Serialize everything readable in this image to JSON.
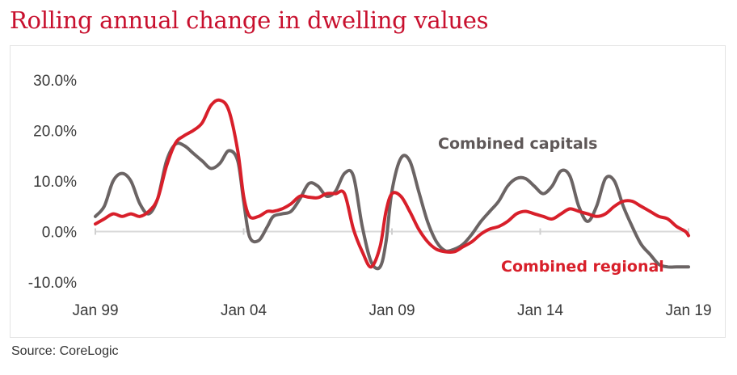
{
  "title": "Rolling annual change in dwelling values",
  "source": "Source: CoreLogic",
  "chart_data": {
    "type": "line",
    "yticks": [
      "30.0%",
      "20.0%",
      "10.0%",
      "0.0%",
      "-10.0%"
    ],
    "ytick_values": [
      30,
      20,
      10,
      0,
      -10
    ],
    "xticks": [
      "Jan 99",
      "Jan 04",
      "Jan 09",
      "Jan 14",
      "Jan 19"
    ],
    "xtick_values": [
      1999,
      2004,
      2009,
      2014,
      2019
    ],
    "xlim": [
      1999,
      2019
    ],
    "ylim": [
      -10,
      30
    ],
    "grid": false,
    "series": [
      {
        "name": "Combined capitals",
        "color": "#6b6464",
        "x": [
          1999.0,
          1999.3,
          1999.6,
          1999.9,
          2000.2,
          2000.5,
          2000.8,
          2001.1,
          2001.4,
          2001.7,
          2002.0,
          2002.3,
          2002.6,
          2002.9,
          2003.2,
          2003.5,
          2003.8,
          2004.0,
          2004.2,
          2004.5,
          2004.8,
          2005.0,
          2005.3,
          2005.6,
          2005.9,
          2006.2,
          2006.5,
          2006.8,
          2007.1,
          2007.4,
          2007.7,
          2008.0,
          2008.3,
          2008.6,
          2008.8,
          2009.0,
          2009.3,
          2009.6,
          2009.9,
          2010.2,
          2010.5,
          2010.8,
          2011.1,
          2011.4,
          2011.7,
          2012.0,
          2012.3,
          2012.6,
          2012.9,
          2013.2,
          2013.5,
          2013.8,
          2014.1,
          2014.4,
          2014.7,
          2015.0,
          2015.3,
          2015.6,
          2015.9,
          2016.2,
          2016.5,
          2016.8,
          2017.1,
          2017.4,
          2017.7,
          2018.0,
          2018.3,
          2018.6,
          2018.9,
          2019.0
        ],
        "y": [
          3.0,
          5.0,
          10.0,
          11.5,
          10.0,
          5.5,
          3.5,
          6.5,
          14.0,
          17.3,
          17.0,
          15.5,
          14.0,
          12.5,
          13.5,
          16.0,
          14.0,
          6.0,
          -1.0,
          -1.8,
          1.0,
          3.0,
          3.5,
          4.0,
          6.5,
          9.5,
          9.0,
          7.0,
          8.0,
          11.5,
          11.0,
          1.0,
          -6.0,
          -7.0,
          -2.0,
          8.0,
          14.5,
          14.0,
          8.0,
          2.0,
          -2.0,
          -3.8,
          -3.5,
          -2.5,
          -0.5,
          2.0,
          4.0,
          6.0,
          9.0,
          10.5,
          10.5,
          9.0,
          7.5,
          9.0,
          12.0,
          11.0,
          5.0,
          2.0,
          5.0,
          10.5,
          10.0,
          5.0,
          1.0,
          -2.5,
          -4.5,
          -6.5,
          -7.0,
          -7.0,
          -7.0,
          -7.0
        ]
      },
      {
        "name": "Combined regional",
        "color": "#d81f2a",
        "x": [
          1999.0,
          1999.3,
          1999.6,
          1999.9,
          2000.2,
          2000.5,
          2000.8,
          2001.1,
          2001.4,
          2001.7,
          2002.0,
          2002.3,
          2002.6,
          2002.9,
          2003.2,
          2003.5,
          2003.8,
          2004.0,
          2004.2,
          2004.5,
          2004.8,
          2005.0,
          2005.3,
          2005.6,
          2005.9,
          2006.2,
          2006.5,
          2006.8,
          2007.1,
          2007.4,
          2007.7,
          2008.0,
          2008.3,
          2008.6,
          2008.8,
          2009.0,
          2009.3,
          2009.6,
          2009.9,
          2010.2,
          2010.5,
          2010.8,
          2011.1,
          2011.4,
          2011.7,
          2012.0,
          2012.3,
          2012.6,
          2012.9,
          2013.2,
          2013.5,
          2013.8,
          2014.1,
          2014.4,
          2014.7,
          2015.0,
          2015.3,
          2015.6,
          2015.9,
          2016.2,
          2016.5,
          2016.8,
          2017.1,
          2017.4,
          2017.7,
          2018.0,
          2018.3,
          2018.6,
          2018.9,
          2019.0
        ],
        "y": [
          1.5,
          2.5,
          3.5,
          3.0,
          3.5,
          3.0,
          4.0,
          6.5,
          13.0,
          17.5,
          19.0,
          20.0,
          21.5,
          25.0,
          26.0,
          24.0,
          16.0,
          7.0,
          3.0,
          3.0,
          4.0,
          4.0,
          4.5,
          5.5,
          7.0,
          6.8,
          6.7,
          7.5,
          7.5,
          7.5,
          0.5,
          -4.0,
          -7.0,
          -3.0,
          4.0,
          7.5,
          7.0,
          4.0,
          0.5,
          -2.0,
          -3.5,
          -4.0,
          -4.0,
          -3.0,
          -2.0,
          -0.5,
          0.5,
          1.0,
          2.0,
          3.5,
          4.0,
          3.5,
          3.0,
          2.5,
          3.5,
          4.5,
          4.0,
          3.5,
          3.0,
          3.5,
          5.0,
          6.0,
          6.0,
          5.0,
          4.0,
          3.0,
          2.5,
          1.0,
          0.0,
          -0.8
        ]
      }
    ]
  }
}
